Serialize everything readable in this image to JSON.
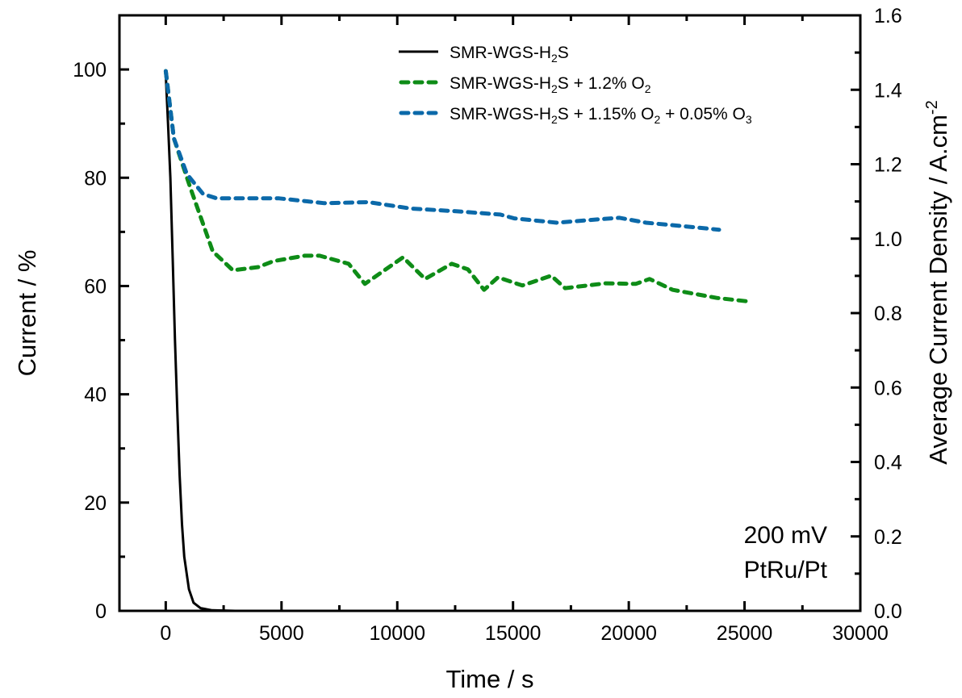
{
  "chart_data": {
    "type": "line",
    "xlabel": "Time / s",
    "ylabel": "Current / %",
    "y2label": {
      "main": "Average Current Density / A.cm",
      "sup": "-2"
    },
    "xlim": [
      -2000,
      30000
    ],
    "ylim": [
      0,
      110
    ],
    "y2lim": [
      0,
      1.6
    ],
    "xticks": [
      0,
      5000,
      10000,
      15000,
      20000,
      25000,
      30000
    ],
    "yticks": [
      0,
      20,
      40,
      60,
      80,
      100
    ],
    "y2ticks": [
      "0.0",
      "0.2",
      "0.4",
      "0.6",
      "0.8",
      "1.0",
      "1.2",
      "1.4",
      "1.6"
    ],
    "grid": false,
    "legend_placement": "top-right",
    "annotations": [
      "200 mV",
      "PtRu/Pt"
    ],
    "series": [
      {
        "name": "SMR-WGS-H2S",
        "label_parts": [
          {
            "t": "SMR-WGS-H"
          },
          {
            "t": "2",
            "sub": true
          },
          {
            "t": "S"
          }
        ],
        "color": "#000000",
        "dash": "solid",
        "x": [
          0,
          100,
          200,
          300,
          400,
          500,
          600,
          700,
          800,
          1000,
          1200,
          1500,
          2000,
          3000
        ],
        "y": [
          99,
          90,
          80,
          65,
          50,
          37,
          25,
          16,
          10,
          4,
          1.5,
          0.5,
          0.1,
          0
        ]
      },
      {
        "name": "SMR-WGS-H2S + 1.2% O2",
        "label_parts": [
          {
            "t": "SMR-WGS-H"
          },
          {
            "t": "2",
            "sub": true
          },
          {
            "t": "S + 1.2% O"
          },
          {
            "t": "2",
            "sub": true
          }
        ],
        "color": "#0e8c17",
        "dash": "dashed",
        "x": [
          0,
          350,
          1050,
          2030,
          2900,
          4000,
          4650,
          6000,
          6650,
          7900,
          8600,
          10250,
          11200,
          12350,
          13050,
          13750,
          14350,
          15400,
          16650,
          17250,
          19000,
          20300,
          20900,
          21900,
          23800,
          25050
        ],
        "y": [
          99.7,
          87.3,
          78.3,
          66.4,
          62.9,
          63.5,
          64.6,
          65.6,
          65.6,
          64.1,
          60.4,
          65.3,
          61.3,
          64.1,
          63.1,
          59.3,
          61.6,
          60.1,
          61.9,
          59.6,
          60.5,
          60.4,
          61.3,
          59.3,
          57.8,
          57.2
        ]
      },
      {
        "name": "SMR-WGS-H2S + 1.15% O2 + 0.05% O3",
        "label_parts": [
          {
            "t": "SMR-WGS-H"
          },
          {
            "t": "2",
            "sub": true
          },
          {
            "t": "S + 1.15% O"
          },
          {
            "t": "2",
            "sub": true
          },
          {
            "t": " + 0.05% O"
          },
          {
            "t": "3",
            "sub": true
          }
        ],
        "color": "#0b69a9",
        "dash": "dashed",
        "x": [
          0,
          350,
          910,
          1610,
          2200,
          4900,
          6850,
          8750,
          10600,
          12600,
          14450,
          15050,
          16900,
          18650,
          19600,
          20750,
          22500,
          23900
        ],
        "y": [
          99.7,
          87.3,
          80.7,
          77.0,
          76.2,
          76.2,
          75.3,
          75.5,
          74.3,
          73.8,
          73.2,
          72.5,
          71.7,
          72.3,
          72.6,
          71.7,
          71.0,
          70.4
        ]
      }
    ]
  }
}
